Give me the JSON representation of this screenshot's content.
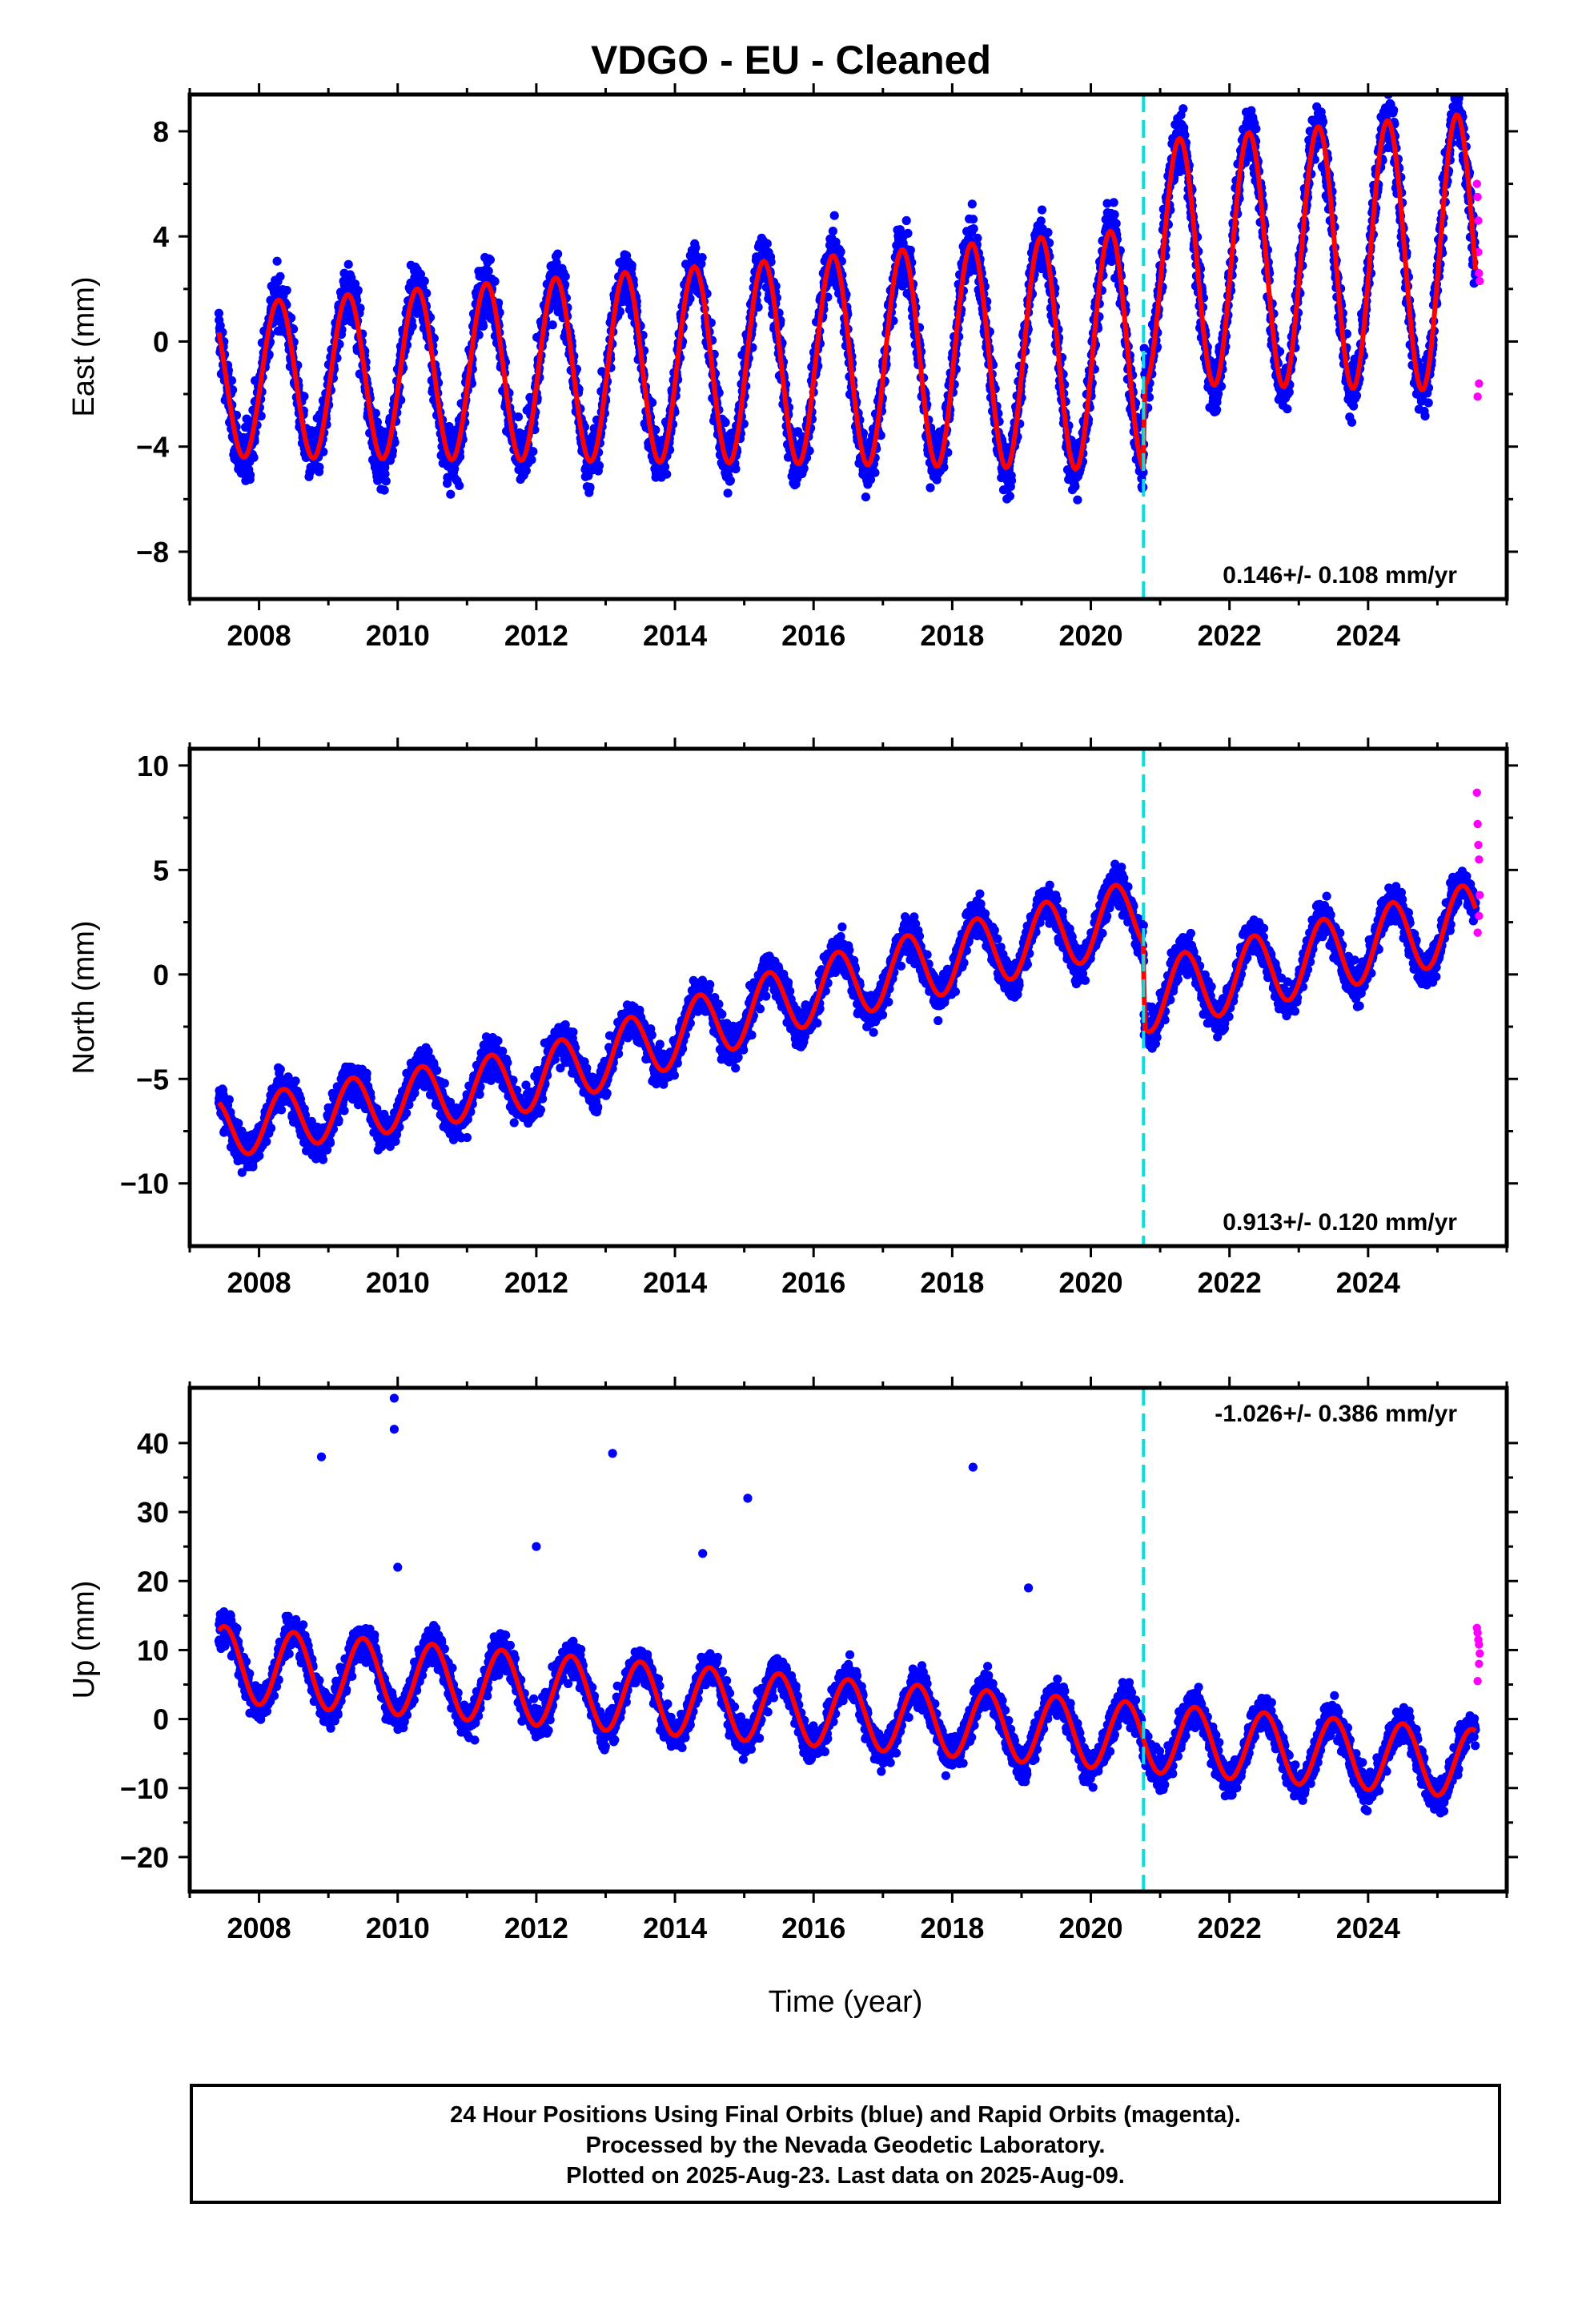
{
  "title": "VDGO  - EU - Cleaned",
  "footer": {
    "line1": "24 Hour Positions Using Final Orbits (blue) and Rapid Orbits (magenta).",
    "line2": "Processed by the Nevada Geodetic Laboratory.",
    "line3": "Plotted on 2025-Aug-23. Last data on 2025-Aug-09."
  },
  "colors": {
    "final_points": "#0000ff",
    "rapid_points": "#ff00ff",
    "model_line": "#ff0000",
    "antenna_change": "#00e0e0"
  },
  "chart_data": [
    {
      "type": "scatter",
      "component": "east",
      "ylabel": "East (mm)",
      "xlabel": "",
      "xlim": [
        2007.0,
        2026.0
      ],
      "ylim": [
        -9.8,
        9.4
      ],
      "x_ticks": [
        2008,
        2010,
        2012,
        2014,
        2016,
        2018,
        2020,
        2022,
        2024
      ],
      "y_ticks": [
        -8,
        -4,
        0,
        4,
        8
      ],
      "y_tick_labels": [
        "−8",
        "−4",
        "0",
        "4",
        "8"
      ],
      "rate_label": "0.146+/- 0.108 mm/yr",
      "rate_position": "bottom-right",
      "step_year": 2020.76,
      "series": [
        {
          "kind": "final",
          "start": 2007.42,
          "end": 2025.55,
          "annual_amp": [
            2.9,
            4.0,
            5.3
          ],
          "phase": 0.28,
          "trend": [
            [
              2007.42,
              -1.5
            ],
            [
              2020.76,
              -0.3
            ],
            [
              2020.77,
              3.0
            ],
            [
              2025.55,
              3.4
            ]
          ],
          "scatter_sd": 1.4
        },
        {
          "kind": "rapid",
          "x": [
            2025.57,
            2025.58,
            2025.59,
            2025.6,
            2025.61,
            2025.6,
            2025.58,
            2025.59
          ],
          "y": [
            6.0,
            5.5,
            3.4,
            2.6,
            2.3,
            -1.6,
            -2.1,
            4.6
          ]
        }
      ],
      "grid": false,
      "legend": "none"
    },
    {
      "type": "scatter",
      "component": "north",
      "ylabel": "North (mm)",
      "xlabel": "",
      "xlim": [
        2007.0,
        2026.0
      ],
      "ylim": [
        -13.0,
        10.8
      ],
      "x_ticks": [
        2008,
        2010,
        2012,
        2014,
        2016,
        2018,
        2020,
        2022,
        2024
      ],
      "y_ticks": [
        -10,
        -5,
        0,
        5,
        10
      ],
      "y_tick_labels": [
        "−10",
        "−5",
        "0",
        "5",
        "10"
      ],
      "rate_label": "0.913+/- 0.120 mm/yr",
      "rate_position": "bottom-right",
      "step_year": 2020.76,
      "series": [
        {
          "kind": "final",
          "start": 2007.42,
          "end": 2025.55,
          "annual_amp": [
            1.4,
            1.6,
            1.8
          ],
          "phase": 0.35,
          "trend": [
            [
              2007.42,
              -7.4
            ],
            [
              2012.0,
              -5.0
            ],
            [
              2016.0,
              -0.8
            ],
            [
              2020.76,
              2.9
            ],
            [
              2020.77,
              -1.1
            ],
            [
              2025.55,
              2.6
            ]
          ],
          "scatter_sd": 1.15
        },
        {
          "kind": "rapid",
          "x": [
            2025.57,
            2025.58,
            2025.59,
            2025.6,
            2025.61,
            2025.6,
            2025.58
          ],
          "y": [
            8.7,
            7.2,
            6.2,
            5.5,
            3.8,
            2.8,
            2.0
          ]
        }
      ],
      "grid": false,
      "legend": "none"
    },
    {
      "type": "scatter",
      "component": "up",
      "ylabel": "Up (mm)",
      "xlabel": "Time (year)",
      "xlim": [
        2007.0,
        2026.0
      ],
      "ylim": [
        -25.0,
        48.0
      ],
      "x_ticks": [
        2008,
        2010,
        2012,
        2014,
        2016,
        2018,
        2020,
        2022,
        2024
      ],
      "y_ticks": [
        -20,
        -10,
        0,
        10,
        20,
        30,
        40
      ],
      "y_tick_labels": [
        "−20",
        "−10",
        "0",
        "10",
        "20",
        "30",
        "40"
      ],
      "rate_label": "-1.026+/- 0.386 mm/yr",
      "rate_position": "top-right",
      "step_year": 2020.76,
      "series": [
        {
          "kind": "final",
          "start": 2007.42,
          "end": 2025.55,
          "annual_amp": [
            5.5,
            5.0,
            5.0
          ],
          "phase": 0.5,
          "trend": [
            [
              2007.42,
              8.0
            ],
            [
              2025.55,
              -6.5
            ]
          ],
          "scatter_sd": 3.3
        },
        {
          "kind": "outliers",
          "x": [
            2009.95,
            2009.95,
            2008.9,
            2013.1,
            2018.3,
            2015.05,
            2014.4,
            2012.0,
            2019.1,
            2010.0
          ],
          "y": [
            46.5,
            42.0,
            38.0,
            38.5,
            36.5,
            32.0,
            24.0,
            25.0,
            19.0,
            22.0
          ]
        },
        {
          "kind": "rapid",
          "x": [
            2025.57,
            2025.58,
            2025.59,
            2025.6,
            2025.61,
            2025.6,
            2025.58
          ],
          "y": [
            13.2,
            12.5,
            11.5,
            10.8,
            9.5,
            8.0,
            5.5
          ]
        }
      ],
      "grid": false,
      "legend": "none"
    }
  ]
}
